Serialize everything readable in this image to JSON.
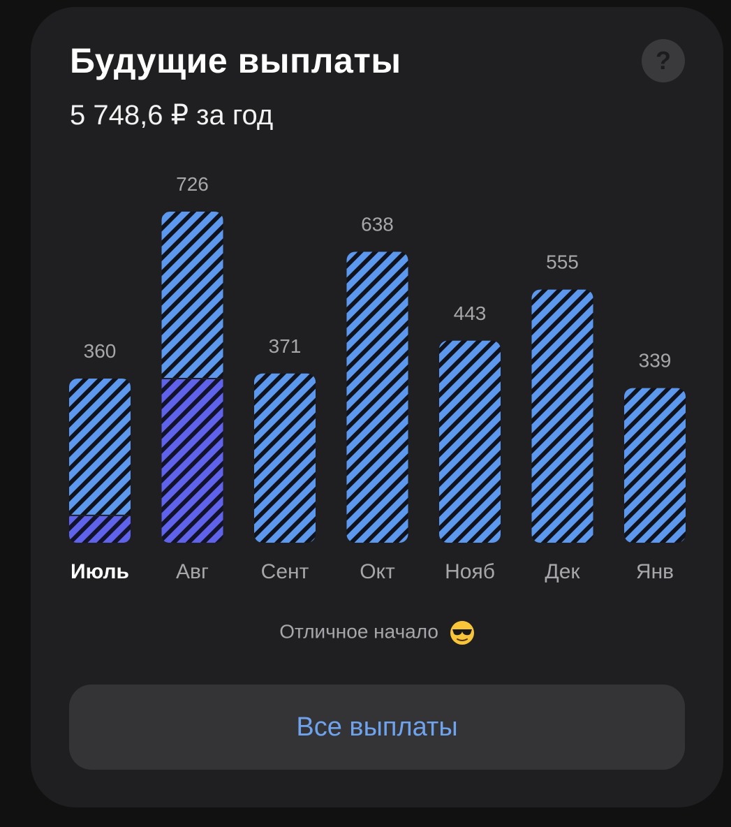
{
  "header": {
    "title": "Будущие выплаты",
    "subtitle": "5 748,6 ₽ за год",
    "help_label": "?"
  },
  "note": {
    "text": "Отличное начало",
    "emoji": "sunglasses-emoji"
  },
  "button": {
    "label": "Все выплаты"
  },
  "colors": {
    "background": "#111112",
    "card": "#1f1f21",
    "bar_stripe": "#5c98ee",
    "bar_received": "#5f62ea",
    "button_text": "#6fa3ee",
    "value_label": "#a7a7ab"
  },
  "chart_data": {
    "type": "bar",
    "categories": [
      "Июль",
      "Авг",
      "Сент",
      "Окт",
      "Нояб",
      "Дек",
      "Янв"
    ],
    "values": [
      360,
      726,
      371,
      638,
      443,
      555,
      339
    ],
    "value_labels": [
      "360",
      "726",
      "371",
      "638",
      "443",
      "555",
      "339"
    ],
    "received": [
      60,
      360,
      0,
      0,
      0,
      0,
      0
    ],
    "active_category": "Июль",
    "ylim": [
      0,
      726
    ],
    "grid": false
  }
}
